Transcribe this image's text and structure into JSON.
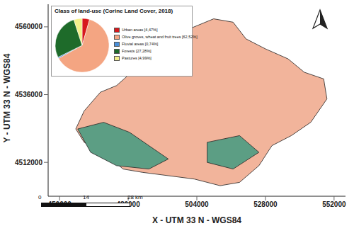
{
  "map": {
    "x_label": "X - UTM 33 N - WGS84",
    "y_label": "Y - UTM 33 N - WGS84",
    "xlim": [
      452000,
      556000
    ],
    "xticks": [
      456000,
      480000,
      504000,
      528000,
      552000
    ],
    "ylim": [
      4500000,
      4568000
    ],
    "yticks": [
      4512000,
      4536000,
      4560000
    ],
    "boundary": {
      "color": "#f2b49b",
      "x": [
        461660,
        464600,
        470260,
        475920,
        483850,
        490640,
        495170,
        498560,
        504220,
        509880,
        516680,
        521200,
        527990,
        535920,
        541580,
        548370,
        549500,
        543840,
        537050,
        530260,
        525730,
        518940,
        512150,
        503090,
        494040,
        484990,
        478190,
        471400,
        464600
      ],
      "y": [
        4523830,
        4530210,
        4536830,
        4539200,
        4546290,
        4551020,
        4554560,
        4558110,
        4560470,
        4562840,
        4561650,
        4555740,
        4552200,
        4548650,
        4543920,
        4541560,
        4534470,
        4526190,
        4521470,
        4517920,
        4510830,
        4504920,
        4503740,
        4506100,
        4507280,
        4508460,
        4509640,
        4515560,
        4519100
      ]
    },
    "forest_patches": [
      {
        "color": "#5c9e84",
        "x": [
          462340,
          471400,
          480450,
          487240,
          494040,
          487240,
          475920,
          466870
        ],
        "y": [
          4523830,
          4526190,
          4522650,
          4517920,
          4513190,
          4509640,
          4510830,
          4515560
        ]
      },
      {
        "color": "#5c9e84",
        "x": [
          507620,
          518940,
          525730,
          516680,
          507620
        ],
        "y": [
          4519100,
          4521470,
          4515560,
          4509640,
          4511990
        ]
      }
    ],
    "scale_bar": {
      "ticks": [
        0,
        14,
        {
          "value": 28,
          "label": "28 km"
        }
      ]
    }
  },
  "chart_data": {
    "type": "pie",
    "title": "Class of land-use (Corine Land Cover, 2018)",
    "categories": [
      "Urban areas",
      "Olive groves, wheat and fruit trees",
      "Fluvial areas",
      "Forests",
      "Pastures"
    ],
    "values": [
      4.47,
      62.52,
      0.74,
      27.28,
      4.99
    ],
    "value_labels": [
      "[4,47%]",
      "[62,52%]",
      "[0,74%]",
      "[27,28%]",
      "[4,99%]"
    ],
    "colors": [
      "#d7191c",
      "#f4a582",
      "#4a90d9",
      "#1e6b2a",
      "#f3ef8a"
    ]
  }
}
